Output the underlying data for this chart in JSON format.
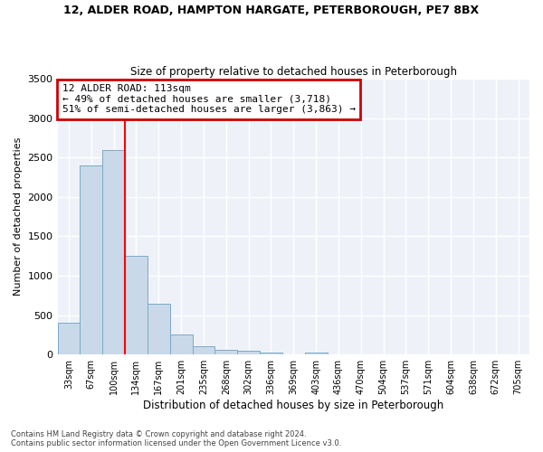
{
  "title": "12, ALDER ROAD, HAMPTON HARGATE, PETERBOROUGH, PE7 8BX",
  "subtitle": "Size of property relative to detached houses in Peterborough",
  "xlabel": "Distribution of detached houses by size in Peterborough",
  "ylabel": "Number of detached properties",
  "categories": [
    "33sqm",
    "67sqm",
    "100sqm",
    "134sqm",
    "167sqm",
    "201sqm",
    "235sqm",
    "268sqm",
    "302sqm",
    "336sqm",
    "369sqm",
    "403sqm",
    "436sqm",
    "470sqm",
    "504sqm",
    "537sqm",
    "571sqm",
    "604sqm",
    "638sqm",
    "672sqm",
    "705sqm"
  ],
  "values": [
    400,
    2400,
    2600,
    1250,
    640,
    250,
    110,
    60,
    45,
    30,
    5,
    30,
    0,
    0,
    0,
    0,
    0,
    0,
    0,
    0,
    0
  ],
  "bar_color": "#c9d9ea",
  "bar_edge_color": "#7aaac8",
  "red_line_x": 2.5,
  "annotation_text": "12 ALDER ROAD: 113sqm\n← 49% of detached houses are smaller (3,718)\n51% of semi-detached houses are larger (3,863) →",
  "annotation_box_color": "#ffffff",
  "annotation_box_edge_color": "#cc0000",
  "ylim": [
    0,
    3500
  ],
  "yticks": [
    0,
    500,
    1000,
    1500,
    2000,
    2500,
    3000,
    3500
  ],
  "bg_color": "#eef2f8",
  "grid_color": "#ffffff",
  "footer_line1": "Contains HM Land Registry data © Crown copyright and database right 2024.",
  "footer_line2": "Contains public sector information licensed under the Open Government Licence v3.0."
}
